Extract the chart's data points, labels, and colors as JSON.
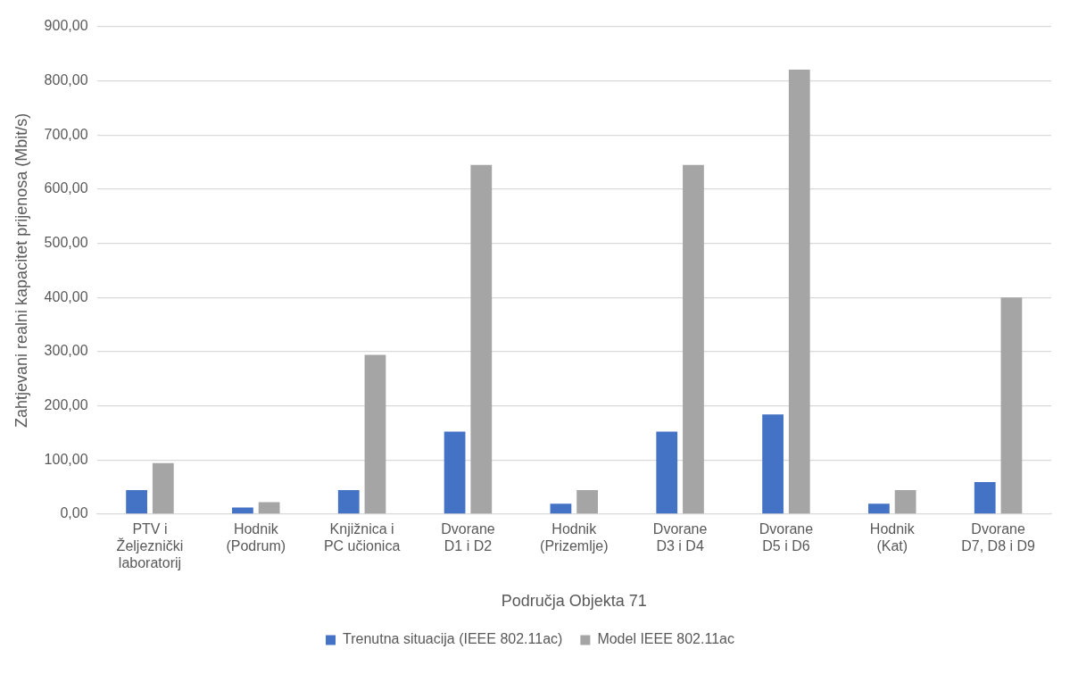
{
  "chart_data": {
    "type": "bar",
    "xlabel": "Područja Objekta 71",
    "ylabel": "Zahtjevani realni kapacitet prijenosa (Mbit/s)",
    "categories": [
      [
        "PTV i",
        "Željeznički",
        "laboratorij"
      ],
      [
        "Hodnik",
        "(Podrum)"
      ],
      [
        "Knjižnica i",
        "PC učionica"
      ],
      [
        "Dvorane",
        "D1 i D2"
      ],
      [
        "Hodnik",
        "(Prizemlje)"
      ],
      [
        "Dvorane",
        "D3 i D4"
      ],
      [
        "Dvorane",
        "D5 i D6"
      ],
      [
        "Hodnik",
        "(Kat)"
      ],
      [
        "Dvorane",
        "D7, D8 i D9"
      ]
    ],
    "series": [
      {
        "name": "Trenutna situacija (IEEE 802.11ac)",
        "color": "#4472c4",
        "values": [
          44,
          12,
          44,
          152,
          19,
          152,
          184,
          19,
          59
        ]
      },
      {
        "name": "Model IEEE 802.11ac",
        "color": "#a5a5a5",
        "values": [
          94,
          22,
          294,
          645,
          44,
          645,
          821,
          44,
          400
        ]
      }
    ],
    "ylim": [
      0,
      900
    ],
    "yticks": [
      {
        "value": 0,
        "label": "0,00"
      },
      {
        "value": 100,
        "label": "100,00"
      },
      {
        "value": 200,
        "label": "200,00"
      },
      {
        "value": 300,
        "label": "300,00"
      },
      {
        "value": 400,
        "label": "400,00"
      },
      {
        "value": 500,
        "label": "500,00"
      },
      {
        "value": 600,
        "label": "600,00"
      },
      {
        "value": 700,
        "label": "700,00"
      },
      {
        "value": 800,
        "label": "800,00"
      },
      {
        "value": 900,
        "label": "900,00"
      }
    ],
    "grid": "y",
    "legend": "bottom"
  }
}
